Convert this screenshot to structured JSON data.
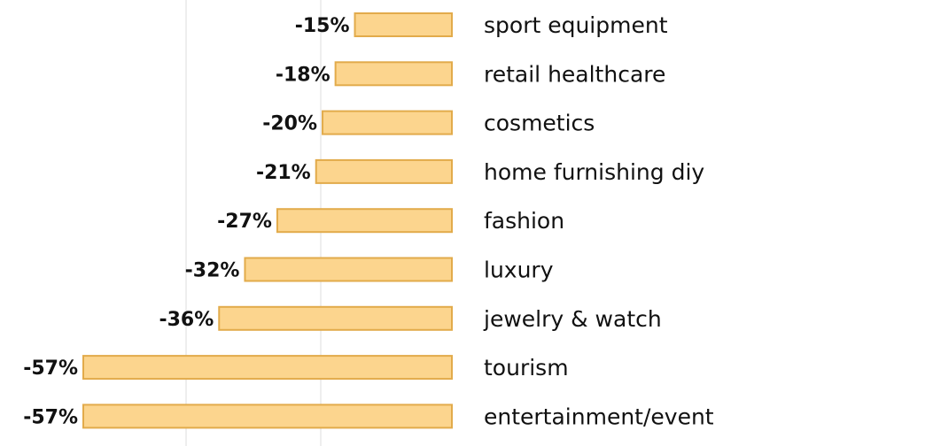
{
  "chart_data": {
    "type": "bar",
    "orientation": "horizontal",
    "title": "",
    "xlabel": "",
    "ylabel": "",
    "categories": [
      "sport equipment",
      "retail healthcare",
      "cosmetics",
      "home furnishing diy",
      "fashion",
      "luxury",
      "jewelry & watch",
      "tourism",
      "entertainment/event"
    ],
    "values": [
      -15,
      -18,
      -20,
      -21,
      -27,
      -32,
      -36,
      -57,
      -57
    ],
    "value_labels": [
      "-15%",
      "-18%",
      "-20%",
      "-21%",
      "-27%",
      "-32%",
      "-36%",
      "-57%",
      "-57%"
    ],
    "xlim": [
      -57,
      0
    ],
    "grid": true,
    "bar_color": "#fcd58e",
    "bar_border_color": "#e2ab4b"
  }
}
